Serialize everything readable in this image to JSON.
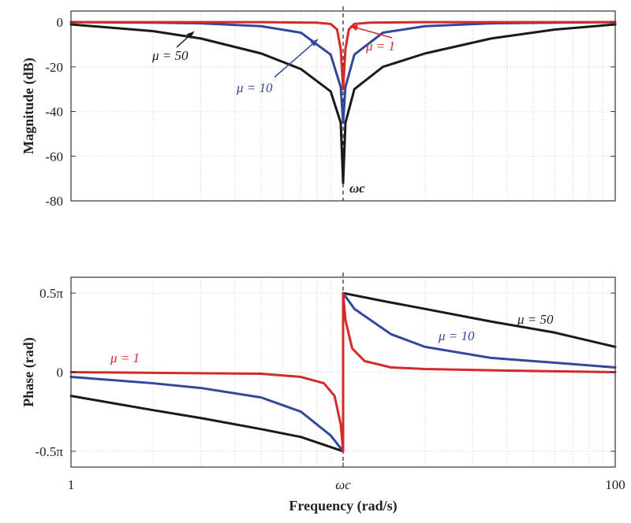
{
  "chart_data": [
    {
      "type": "line",
      "panel": "magnitude",
      "ylabel": "Magnitude (dB)",
      "xscale": "log",
      "xlim": [
        1,
        100
      ],
      "ylim": [
        -80,
        5
      ],
      "ytick_labels": [
        "0",
        "-20",
        "-40",
        "-60",
        "-80"
      ],
      "ytick_values": [
        0,
        -20,
        -40,
        -60,
        -80
      ],
      "grid": true,
      "center_frequency": 10,
      "center_label": "ωc",
      "series": [
        {
          "name": "μ = 50",
          "color": "#1a1a1a",
          "x": [
            1,
            2,
            3,
            5,
            7,
            9,
            9.8,
            10,
            10.2,
            11,
            14,
            20,
            35,
            60,
            100
          ],
          "values": [
            -1,
            -4,
            -7.3,
            -14,
            -21,
            -31,
            -45,
            -72,
            -45,
            -30,
            -20,
            -14,
            -7.3,
            -3.3,
            -1
          ]
        },
        {
          "name": "μ = 10",
          "color": "#34489b",
          "x": [
            1,
            2,
            3,
            5,
            7,
            9,
            9.8,
            10,
            10.2,
            11,
            14,
            20,
            35,
            60,
            100
          ],
          "values": [
            0,
            -0.2,
            -0.5,
            -1.8,
            -4.7,
            -14.5,
            -29,
            -45,
            -29,
            -14.5,
            -4.7,
            -1.8,
            -0.5,
            -0.2,
            0
          ]
        },
        {
          "name": "μ = 1",
          "color": "#d42a2a",
          "x": [
            1,
            5,
            8,
            9,
            9.5,
            9.8,
            10,
            10.2,
            10.5,
            11,
            12.5,
            20,
            100
          ],
          "values": [
            0,
            0,
            -0.2,
            -0.8,
            -3.2,
            -12,
            -30,
            -12,
            -3.2,
            -0.8,
            -0.2,
            0,
            0
          ]
        }
      ],
      "annotations": [
        {
          "text": "μ = 50",
          "color": "#1a1a1a"
        },
        {
          "text": "μ = 10",
          "color": "#34489b"
        },
        {
          "text": "μ = 1",
          "color": "#d42a2a"
        }
      ]
    },
    {
      "type": "line",
      "panel": "phase",
      "xlabel": "Frequency (rad/s)",
      "ylabel": "Phase (rad)",
      "xscale": "log",
      "xlim": [
        1,
        100
      ],
      "ylim": [
        -0.6,
        0.6
      ],
      "xtick_labels": [
        "1",
        "ωc",
        "100"
      ],
      "xtick_values": [
        1,
        10,
        100
      ],
      "ytick_labels": [
        "0.5π",
        "0",
        "-0.5π"
      ],
      "ytick_values": [
        0.5,
        0,
        -0.5
      ],
      "yunit": "π rad",
      "grid": true,
      "series": [
        {
          "name": "μ = 50",
          "color": "#1a1a1a",
          "x": [
            1,
            2,
            3,
            5,
            7,
            10,
            10,
            14,
            20,
            35,
            60,
            100
          ],
          "values": [
            -0.15,
            -0.24,
            -0.29,
            -0.36,
            -0.41,
            -0.5,
            0.5,
            0.45,
            0.4,
            0.32,
            0.25,
            0.16
          ]
        },
        {
          "name": "μ = 10",
          "color": "#34489b",
          "x": [
            1,
            2,
            3,
            5,
            7,
            9,
            10,
            10,
            11,
            15,
            20,
            35,
            60,
            100
          ],
          "values": [
            -0.03,
            -0.07,
            -0.1,
            -0.16,
            -0.25,
            -0.4,
            -0.5,
            0.5,
            0.4,
            0.24,
            0.16,
            0.09,
            0.06,
            0.03
          ]
        },
        {
          "name": "μ = 1",
          "color": "#d42a2a",
          "x": [
            1,
            5,
            7,
            8.5,
            9.3,
            9.8,
            10,
            10,
            10.2,
            10.8,
            12,
            15,
            20,
            40,
            100
          ],
          "values": [
            0,
            -0.01,
            -0.03,
            -0.07,
            -0.15,
            -0.33,
            -0.5,
            0.5,
            0.33,
            0.15,
            0.07,
            0.03,
            0.02,
            0.01,
            0
          ]
        }
      ],
      "annotations": [
        {
          "text": "μ = 50",
          "color": "#1a1a1a"
        },
        {
          "text": "μ = 10",
          "color": "#34489b"
        },
        {
          "text": "μ = 1",
          "color": "#d42a2a"
        }
      ]
    }
  ]
}
